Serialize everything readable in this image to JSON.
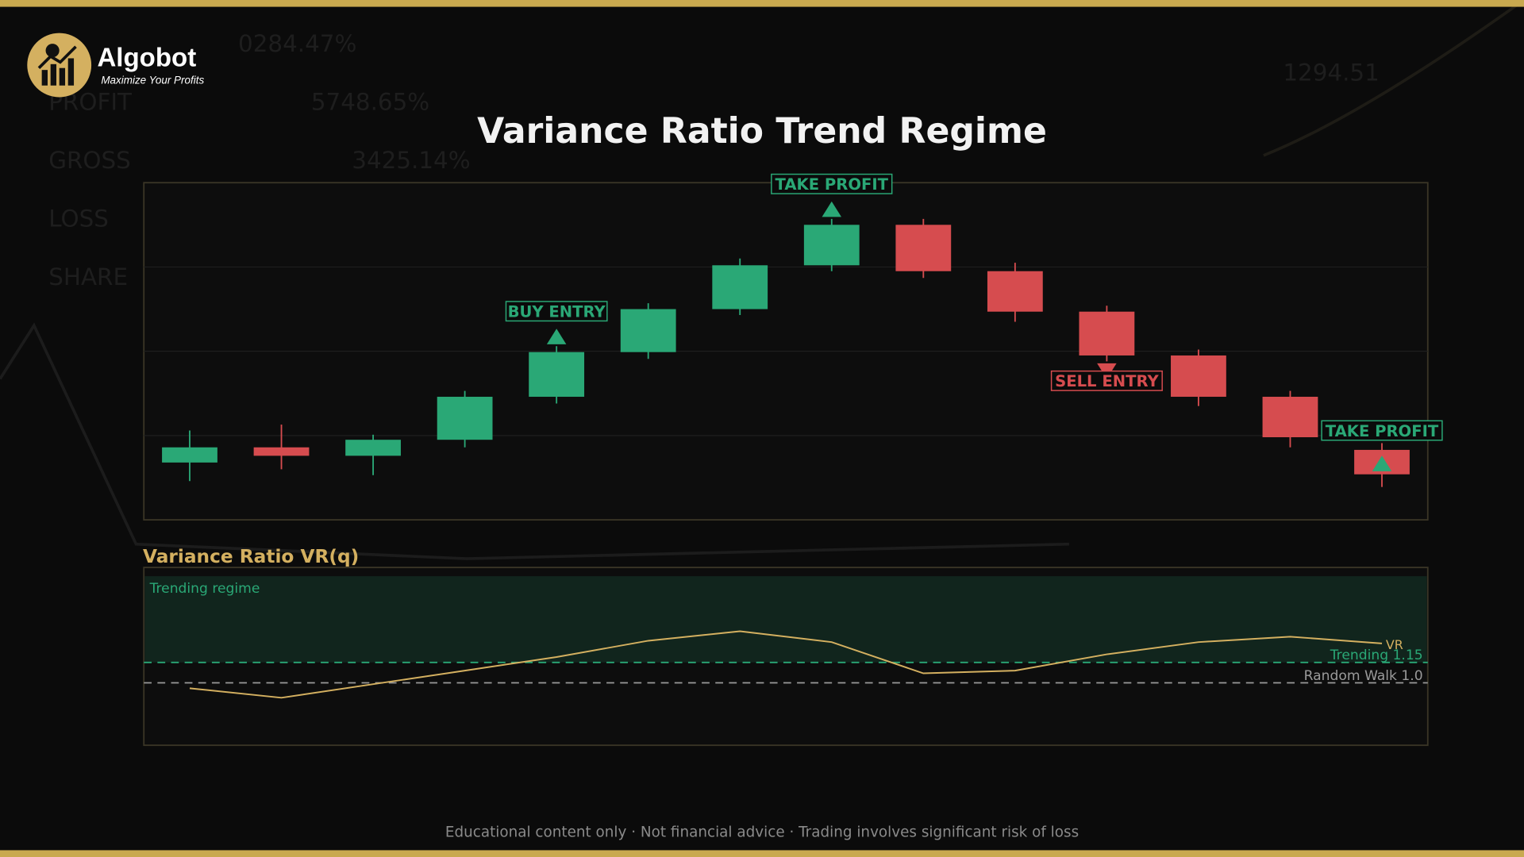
{
  "brand": {
    "name": "Algobot",
    "tagline": "Maximize Your Profits"
  },
  "background_texts": [
    "0284.47%",
    "PROFIT",
    "5748.65%",
    "GROSS",
    "3425.14%",
    "LOSS",
    "SHARE",
    "1294.51"
  ],
  "footer": "Educational content only · Not financial advice · Trading involves significant risk of loss",
  "chart_data": [
    {
      "type": "candlestick",
      "title": "Variance Ratio Trend Regime",
      "up_color": "#2aa876",
      "down_color": "#d64c4f",
      "ylim": [
        0,
        4
      ],
      "grid_values": [
        1,
        2,
        3
      ],
      "grid": true,
      "open": [
        0.68,
        0.86,
        0.76,
        0.95,
        1.46,
        1.99,
        2.5,
        3.02,
        3.5,
        2.95,
        2.47,
        1.95,
        1.46,
        0.83
      ],
      "high": [
        1.06,
        1.13,
        1.01,
        1.53,
        2.06,
        2.57,
        3.1,
        3.57,
        3.57,
        3.05,
        2.54,
        2.02,
        1.53,
        0.91
      ],
      "low": [
        0.46,
        0.6,
        0.53,
        0.86,
        1.38,
        1.91,
        2.43,
        2.95,
        2.87,
        2.35,
        1.88,
        1.35,
        0.86,
        0.39
      ],
      "close": [
        0.86,
        0.76,
        0.95,
        1.46,
        1.99,
        2.5,
        3.02,
        3.5,
        2.95,
        2.47,
        1.95,
        1.46,
        0.98,
        0.54
      ],
      "annotations": [
        {
          "label": "BUY ENTRY",
          "candle": 4,
          "position": "above",
          "color": "#2aa876"
        },
        {
          "label": "TAKE PROFIT",
          "candle": 7,
          "position": "above",
          "color": "#2aa876"
        },
        {
          "label": "SELL ENTRY",
          "candle": 10,
          "position": "below",
          "color": "#d64c4f"
        },
        {
          "label": "TAKE PROFIT",
          "candle": 13,
          "position": "inside",
          "color": "#2aa876"
        }
      ]
    },
    {
      "type": "line",
      "title": "Variance Ratio VR(q)",
      "region_label": "Trending regime",
      "ylim": [
        0.54,
        1.85
      ],
      "series": [
        {
          "name": "VR",
          "color": "#d4b060",
          "values": [
            0.96,
            0.89,
            0.99,
            1.09,
            1.19,
            1.31,
            1.38,
            1.3,
            1.07,
            1.09,
            1.21,
            1.3,
            1.34,
            1.29
          ]
        }
      ],
      "reference_lines": [
        {
          "label": "Trending 1.15",
          "value": 1.15,
          "color": "#2aa876"
        },
        {
          "label": "Random Walk 1.0",
          "value": 1.0,
          "color": "#9a9a9a"
        }
      ]
    }
  ]
}
